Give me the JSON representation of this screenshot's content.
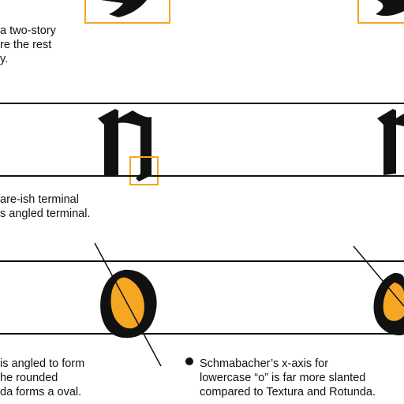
{
  "colors": {
    "accent": "#f5a623",
    "ink": "#111111",
    "background": "#ffffff"
  },
  "top_section": {
    "caption_lines": [
      "a two-story",
      "re the rest",
      "y."
    ]
  },
  "middle_section": {
    "glyph_left": "n",
    "glyph_right": "n",
    "caption_lines": [
      "are-ish terminal",
      "s angled terminal."
    ]
  },
  "bottom_section": {
    "glyph_left": "o",
    "glyph_right": "o",
    "left_caption_lines": [
      "is angled to form",
      "he rounded",
      "da forms a oval."
    ],
    "right_caption_lines": [
      "Schmabacher’s x-axis for",
      "lowercase “o” is far more slanted",
      "compared to Textura and Rotunda."
    ]
  }
}
